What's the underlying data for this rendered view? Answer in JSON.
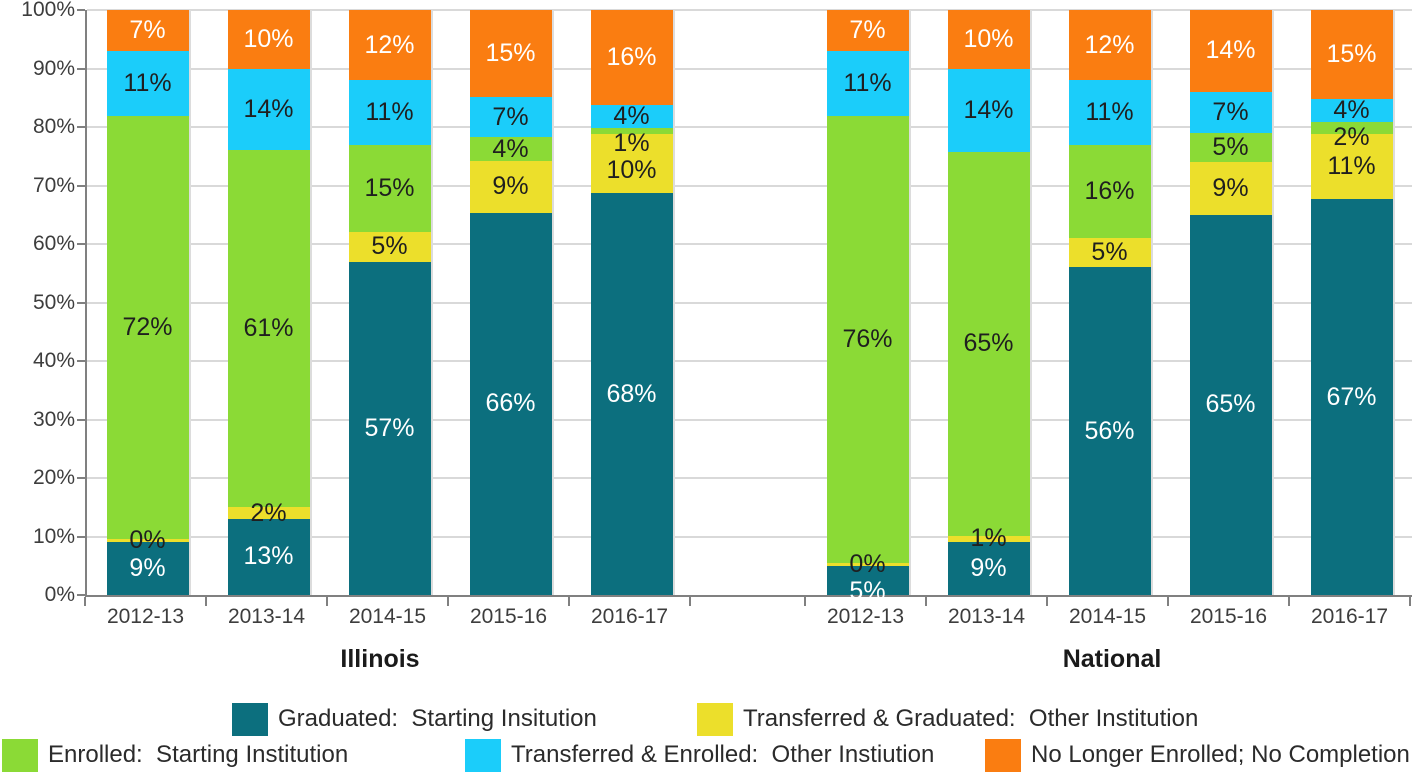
{
  "chart_data": {
    "type": "bar",
    "variant": "100-percent-stacked-column",
    "title": "",
    "xlabel": "",
    "ylabel": "",
    "ylim": [
      0,
      100
    ],
    "grid": "horizontal",
    "legend_position": "bottom",
    "categories": [
      "2012-13",
      "2013-14",
      "2014-15",
      "2015-16",
      "2016-17"
    ],
    "groups": [
      {
        "label": "Illinois"
      },
      {
        "label": "National"
      }
    ],
    "y_axis_labels": [
      "0%",
      "10%",
      "20%",
      "30%",
      "40%",
      "50%",
      "60%",
      "70%",
      "80%",
      "90%",
      "100%"
    ],
    "data_label_format": "{value}%",
    "series": [
      {
        "name": "Graduated:  Starting Insitution",
        "color": "#0c6f7e",
        "label_text": "light",
        "values": {
          "Illinois": [
            9,
            13,
            57,
            66,
            68
          ],
          "National": [
            5,
            9,
            56,
            65,
            67
          ]
        }
      },
      {
        "name": "Transferred & Graduated:  Other Institution",
        "color": "#ecdf2b",
        "label_text": "dark",
        "values": {
          "Illinois": [
            0,
            2,
            5,
            9,
            10
          ],
          "National": [
            0,
            1,
            5,
            9,
            11
          ]
        }
      },
      {
        "name": "Enrolled:  Starting Institution",
        "color": "#8bda36",
        "label_text": "dark",
        "values": {
          "Illinois": [
            72,
            61,
            15,
            4,
            1
          ],
          "National": [
            76,
            65,
            16,
            5,
            2
          ]
        }
      },
      {
        "name": "Transferred & Enrolled:  Other Instiution",
        "color": "#1bcdfa",
        "label_text": "dark",
        "values": {
          "Illinois": [
            11,
            14,
            11,
            7,
            4
          ],
          "National": [
            11,
            14,
            11,
            7,
            4
          ]
        }
      },
      {
        "name": "No Longer Enrolled; No Completion",
        "color": "#fa7d11",
        "label_text": "light",
        "values": {
          "Illinois": [
            7,
            10,
            12,
            15,
            16
          ],
          "National": [
            7,
            10,
            12,
            14,
            15
          ]
        }
      }
    ],
    "style": {
      "axis_color": "#808080",
      "grid_color": "#d9d9d9",
      "tick_label_color": "#3d3d3d",
      "data_label_dark": "#1f1f1f",
      "data_label_light": "#ffffff"
    },
    "legend_rows": [
      [
        0,
        1
      ],
      [
        2,
        3,
        4
      ]
    ]
  }
}
